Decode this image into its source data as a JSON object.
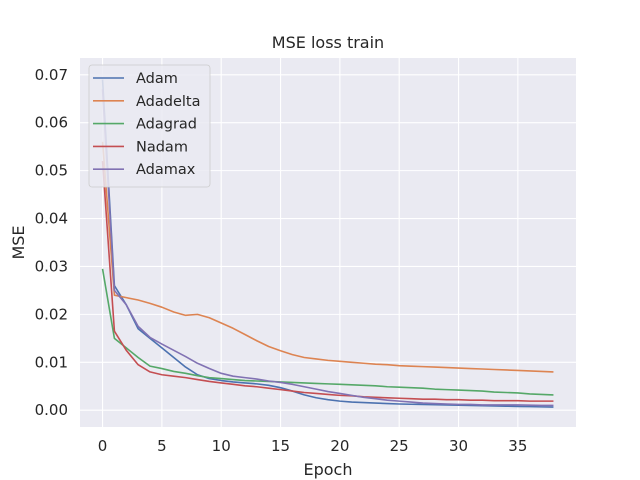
{
  "chart_data": {
    "type": "line",
    "title": "MSE loss train",
    "xlabel": "Epoch",
    "ylabel": "MSE",
    "xlim": [
      -1.9,
      39.9
    ],
    "ylim": [
      -0.0035,
      0.0735
    ],
    "xticks": [
      0,
      5,
      10,
      15,
      20,
      25,
      30,
      35
    ],
    "xtick_labels": [
      "0",
      "5",
      "10",
      "15",
      "20",
      "25",
      "30",
      "35"
    ],
    "yticks": [
      0,
      0.01,
      0.02,
      0.03,
      0.04,
      0.05,
      0.06,
      0.07
    ],
    "ytick_labels": [
      "0.00",
      "0.01",
      "0.02",
      "0.03",
      "0.04",
      "0.05",
      "0.06",
      "0.07"
    ],
    "grid": true,
    "legend_position": "top-left",
    "x": [
      0,
      1,
      2,
      3,
      4,
      5,
      6,
      7,
      8,
      9,
      10,
      11,
      12,
      13,
      14,
      15,
      16,
      17,
      18,
      19,
      20,
      21,
      22,
      23,
      24,
      25,
      26,
      27,
      28,
      29,
      30,
      31,
      32,
      33,
      34,
      35,
      36,
      37,
      38
    ],
    "series": [
      {
        "name": "Adam",
        "color": "#4c72b0",
        "values": [
          0.069,
          0.026,
          0.022,
          0.017,
          0.015,
          0.013,
          0.011,
          0.009,
          0.0074,
          0.0066,
          0.0062,
          0.0059,
          0.0057,
          0.0055,
          0.0052,
          0.0047,
          0.004,
          0.0032,
          0.0026,
          0.0022,
          0.0019,
          0.0017,
          0.0016,
          0.0015,
          0.0014,
          0.0013,
          0.00125,
          0.0012,
          0.00115,
          0.0011,
          0.00105,
          0.001,
          0.00095,
          0.0009,
          0.00085,
          0.0008,
          0.00075,
          0.0007,
          0.00065
        ]
      },
      {
        "name": "Adadelta",
        "color": "#dd8452",
        "values": [
          0.056,
          0.024,
          0.0235,
          0.023,
          0.0223,
          0.0215,
          0.0205,
          0.0198,
          0.02,
          0.0193,
          0.0182,
          0.0171,
          0.0158,
          0.0145,
          0.0133,
          0.0124,
          0.0116,
          0.011,
          0.0107,
          0.0104,
          0.0102,
          0.01,
          0.0098,
          0.0096,
          0.0095,
          0.0093,
          0.0092,
          0.0091,
          0.009,
          0.0089,
          0.0088,
          0.0087,
          0.0086,
          0.0085,
          0.0084,
          0.0083,
          0.0082,
          0.0081,
          0.008
        ]
      },
      {
        "name": "Adagrad",
        "color": "#55a868",
        "values": [
          0.0295,
          0.015,
          0.013,
          0.011,
          0.0092,
          0.0087,
          0.0081,
          0.0077,
          0.0072,
          0.0068,
          0.0066,
          0.0064,
          0.0062,
          0.0061,
          0.006,
          0.0059,
          0.0058,
          0.0057,
          0.0056,
          0.0055,
          0.0054,
          0.0053,
          0.0052,
          0.0051,
          0.0049,
          0.0048,
          0.0047,
          0.0046,
          0.0044,
          0.0043,
          0.0042,
          0.0041,
          0.004,
          0.0038,
          0.0037,
          0.0036,
          0.0034,
          0.0033,
          0.0032
        ]
      },
      {
        "name": "Nadam",
        "color": "#c44e52",
        "values": [
          0.052,
          0.0165,
          0.0125,
          0.0095,
          0.008,
          0.0074,
          0.0071,
          0.0068,
          0.0064,
          0.006,
          0.0057,
          0.0054,
          0.0051,
          0.0049,
          0.0046,
          0.0043,
          0.004,
          0.0037,
          0.0035,
          0.0033,
          0.0031,
          0.003,
          0.0028,
          0.0027,
          0.0026,
          0.0025,
          0.0024,
          0.0023,
          0.0023,
          0.0022,
          0.0022,
          0.0021,
          0.0021,
          0.002,
          0.002,
          0.002,
          0.0019,
          0.0019,
          0.0019
        ]
      },
      {
        "name": "Adamax",
        "color": "#8172b3",
        "values": [
          0.067,
          0.025,
          0.022,
          0.0175,
          0.0152,
          0.0138,
          0.0125,
          0.0112,
          0.0098,
          0.0087,
          0.0077,
          0.0071,
          0.0068,
          0.0065,
          0.0061,
          0.0058,
          0.0054,
          0.0049,
          0.0044,
          0.0039,
          0.0035,
          0.0031,
          0.0027,
          0.0024,
          0.0021,
          0.0019,
          0.0017,
          0.0015,
          0.0014,
          0.0013,
          0.0012,
          0.0012,
          0.0011,
          0.0011,
          0.0011,
          0.0011,
          0.00105,
          0.001,
          0.001
        ]
      }
    ]
  }
}
